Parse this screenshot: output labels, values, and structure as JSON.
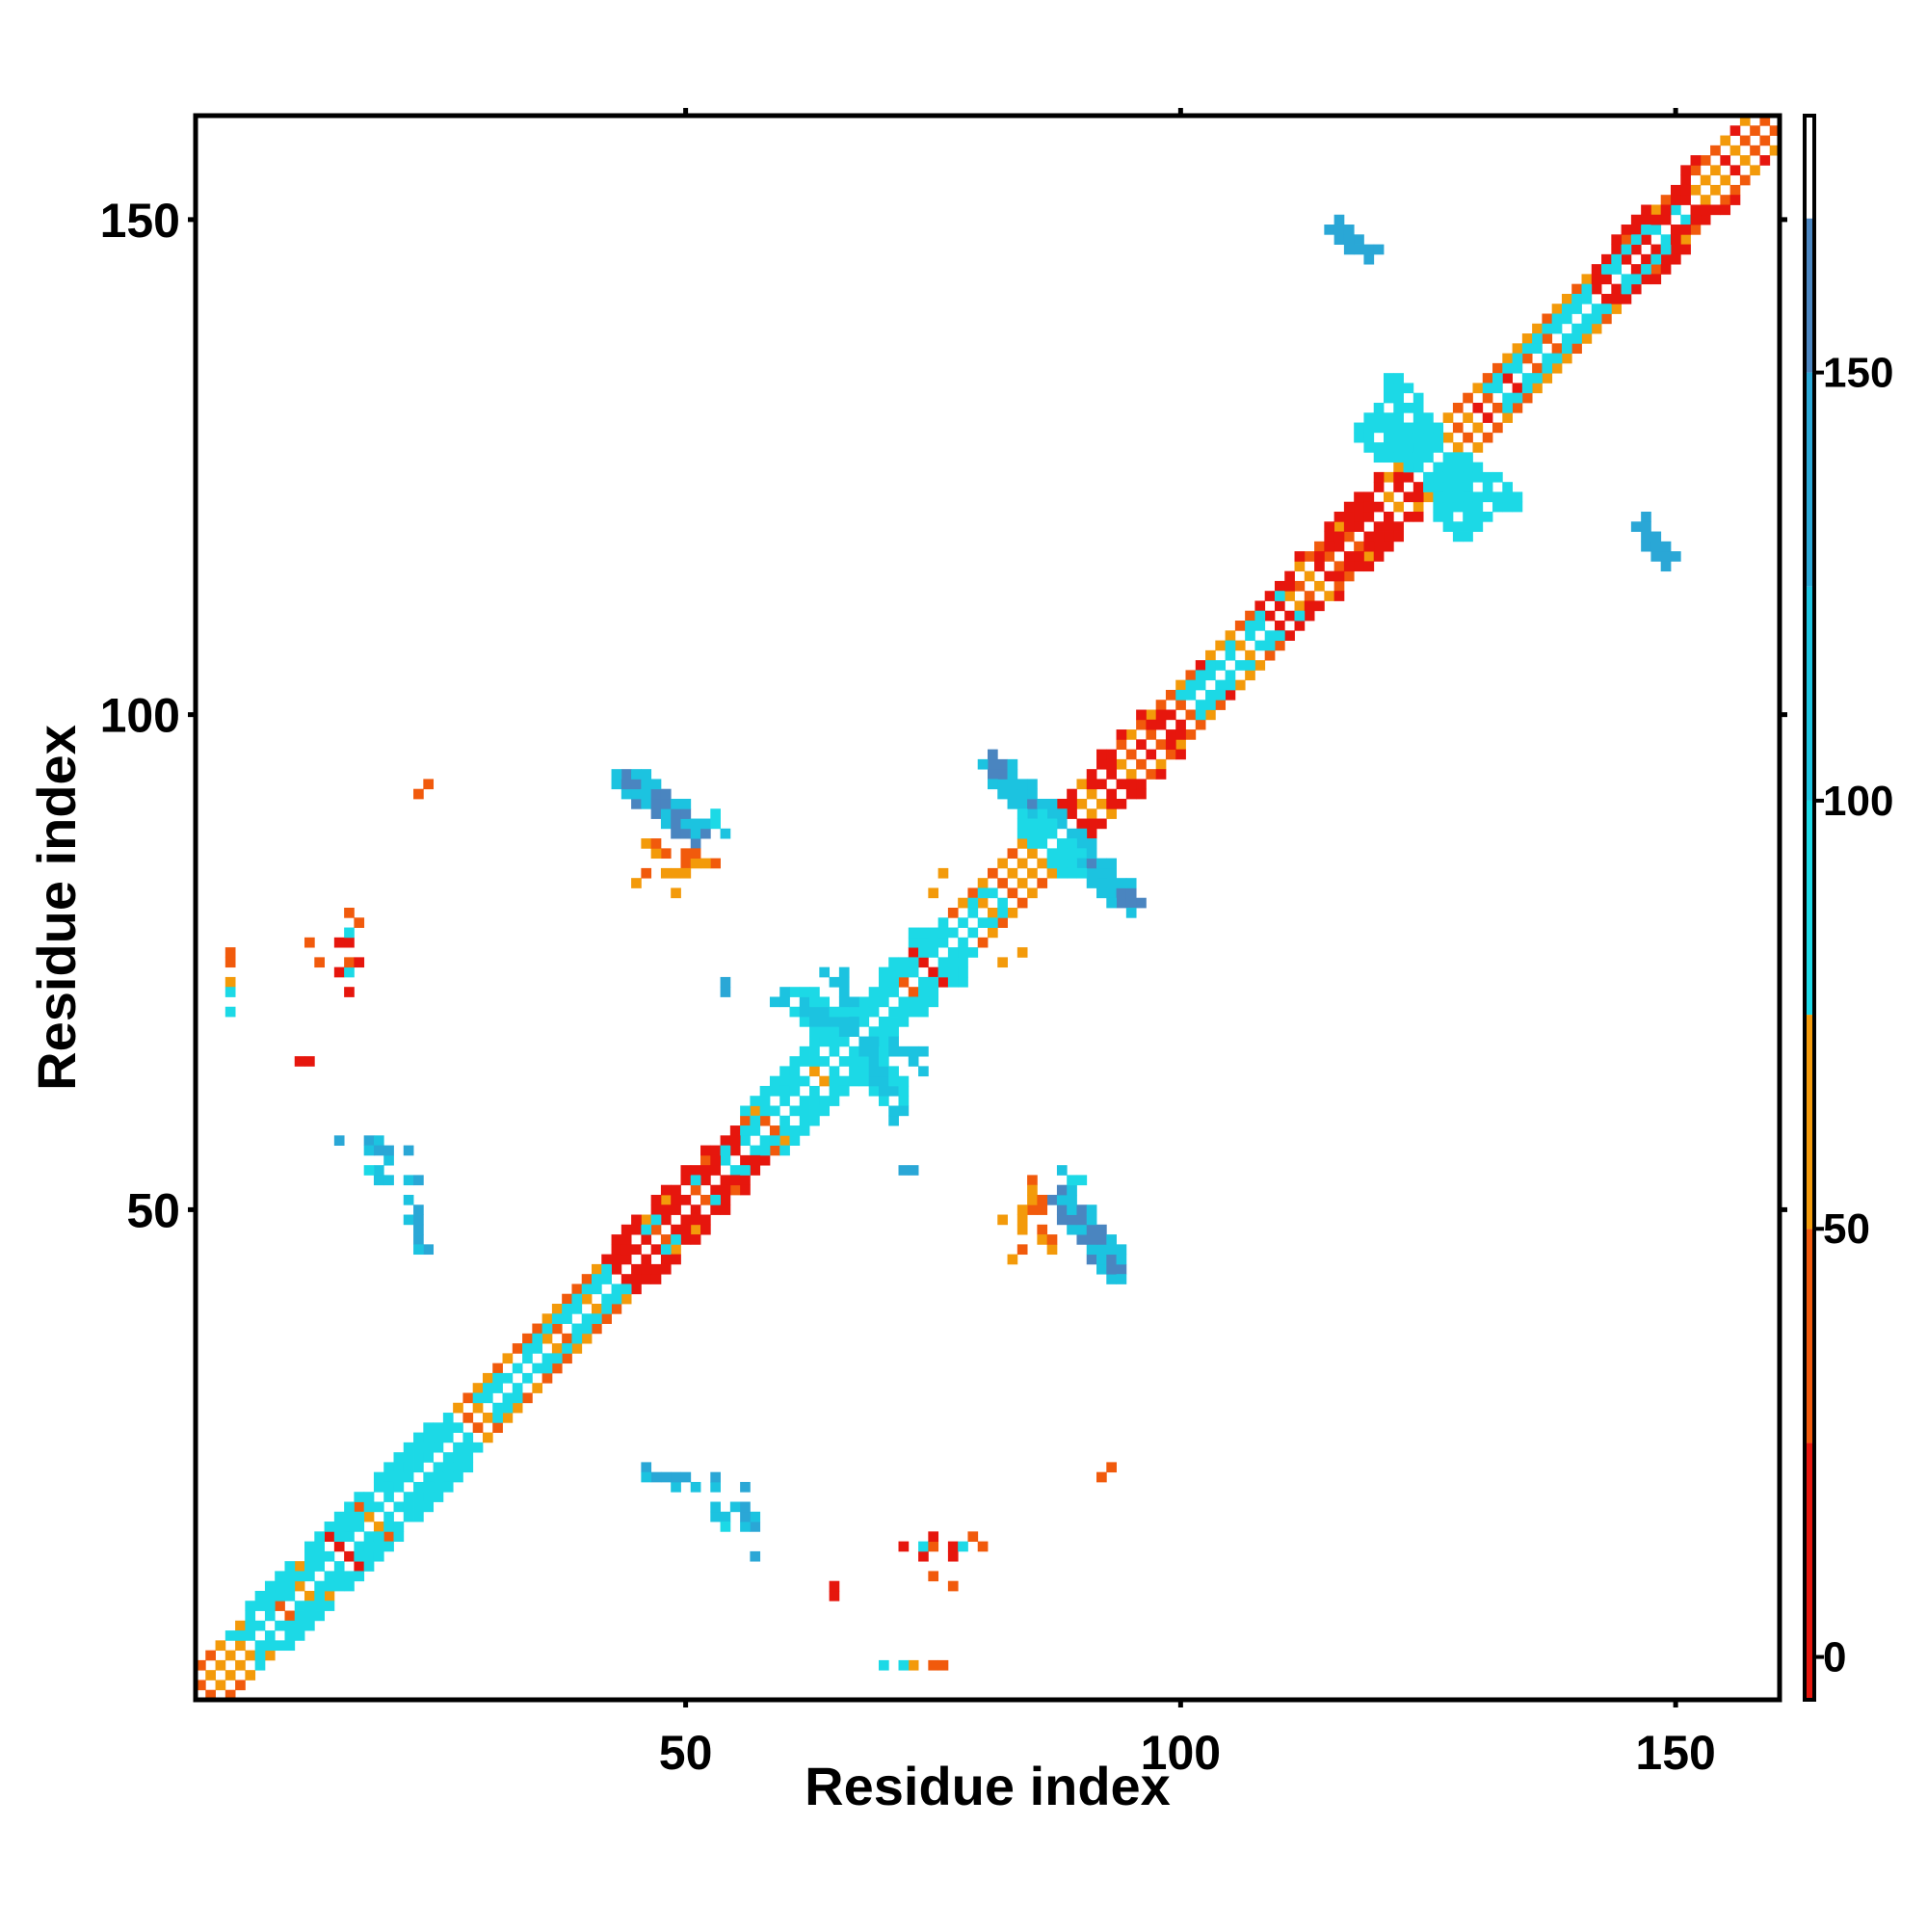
{
  "chart_data": {
    "type": "heatmap",
    "title": "",
    "xlabel": "Residue index",
    "ylabel": "Residue index",
    "xlim": [
      1,
      160
    ],
    "ylim": [
      1,
      160
    ],
    "x_ticks": [
      50,
      100,
      150
    ],
    "y_ticks": [
      50,
      100,
      150
    ],
    "colorbar": {
      "ticks": [
        0,
        50,
        100,
        150
      ],
      "range": [
        -5,
        180
      ],
      "bands": [
        {
          "from": -5,
          "to": 25,
          "color": "#e6160d"
        },
        {
          "from": 25,
          "to": 50,
          "color": "#f15a0c"
        },
        {
          "from": 50,
          "to": 75,
          "color": "#f39a0a"
        },
        {
          "from": 75,
          "to": 100,
          "color": "#1cd9e6"
        },
        {
          "from": 100,
          "to": 125,
          "color": "#1cc3e0"
        },
        {
          "from": 125,
          "to": 150,
          "color": "#2aa7d6"
        },
        {
          "from": 150,
          "to": 168,
          "color": "#4a85c0"
        },
        {
          "from": 168,
          "to": 180,
          "color": "#ffffff"
        }
      ]
    },
    "grid": false,
    "legend": "right colorbar",
    "symmetric": true,
    "regions": [
      {
        "name": "diagonal-band",
        "kind": "band",
        "start": [
          1,
          1
        ],
        "end": [
          160,
          160
        ],
        "half_width": 3,
        "pattern": "checker",
        "colors": [
          "#f39a0a",
          "#f15a0c",
          "#e6160d"
        ]
      },
      {
        "name": "diag-helix-1",
        "kind": "segment",
        "start": [
          7,
          7
        ],
        "end": [
          26,
          26
        ],
        "half_width": 3,
        "color": "#1cd9e6",
        "density": 0.55
      },
      {
        "name": "diag-helix-2",
        "kind": "segment",
        "start": [
          31,
          31
        ],
        "end": [
          42,
          42
        ],
        "half_width": 2,
        "color": "#1cd9e6",
        "density": 0.5
      },
      {
        "name": "diag-helix-3",
        "kind": "segment",
        "start": [
          48,
          48
        ],
        "end": [
          58,
          58
        ],
        "half_width": 2,
        "color": "#1cd9e6",
        "density": 0.5
      },
      {
        "name": "diag-helix-4",
        "kind": "segment",
        "start": [
          58,
          58
        ],
        "end": [
          76,
          76
        ],
        "half_width": 3,
        "color": "#1cd9e6",
        "density": 0.55
      },
      {
        "name": "diag-helix-5",
        "kind": "segment",
        "start": [
          102,
          102
        ],
        "end": [
          110,
          110
        ],
        "half_width": 2,
        "color": "#1cd9e6",
        "density": 0.45
      },
      {
        "name": "diag-helix-6",
        "kind": "segment",
        "start": [
          133,
          133
        ],
        "end": [
          140,
          140
        ],
        "half_width": 2,
        "color": "#1cd9e6",
        "density": 0.55
      },
      {
        "name": "diag-helix-7",
        "kind": "segment",
        "start": [
          142,
          142
        ],
        "end": [
          150,
          150
        ],
        "half_width": 2,
        "color": "#1cd9e6",
        "density": 0.5
      },
      {
        "name": "diag-red-1",
        "kind": "segment",
        "start": [
          45,
          45
        ],
        "end": [
          55,
          55
        ],
        "half_width": 3,
        "color": "#e6160d",
        "density": 0.3
      },
      {
        "name": "diag-red-2",
        "kind": "segment",
        "start": [
          88,
          88
        ],
        "end": [
          98,
          98
        ],
        "half_width": 3,
        "color": "#e6160d",
        "density": 0.3
      },
      {
        "name": "diag-red-3",
        "kind": "segment",
        "start": [
          111,
          111
        ],
        "end": [
          122,
          122
        ],
        "half_width": 3,
        "color": "#e6160d",
        "density": 0.3
      },
      {
        "name": "diag-red-4",
        "kind": "segment",
        "start": [
          144,
          144
        ],
        "end": [
          154,
          154
        ],
        "half_width": 3,
        "color": "#e6160d",
        "density": 0.3
      },
      {
        "name": "cross-1-arm",
        "kind": "segment",
        "start": [
          81,
          95
        ],
        "end": [
          95,
          81
        ],
        "half_width": 1.3,
        "color": "#4a85c0",
        "density": 0.9
      },
      {
        "name": "cross-1-edge",
        "kind": "segment",
        "start": [
          81,
          95
        ],
        "end": [
          95,
          81
        ],
        "half_width": 1.9,
        "color": "#1cc3e0",
        "density": 0.5
      },
      {
        "name": "cross-1-center",
        "kind": "segment",
        "start": [
          86,
          88
        ],
        "end": [
          89,
          85
        ],
        "half_width": 1.5,
        "color": "#1cd9e6",
        "density": 0.9
      },
      {
        "name": "cross-2-arm",
        "kind": "segment",
        "start": [
          119,
          128
        ],
        "end": [
          133,
          122
        ],
        "half_width": 1.5,
        "color": "#1cd9e6",
        "density": 0.8
      },
      {
        "name": "cross-2-arm-b",
        "kind": "segment",
        "start": [
          124,
          131
        ],
        "end": [
          130,
          120
        ],
        "half_width": 1.2,
        "color": "#1cd9e6",
        "density": 0.7
      },
      {
        "name": "cross-3-arm",
        "kind": "segment",
        "start": [
          61,
          70
        ],
        "end": [
          72,
          62
        ],
        "half_width": 1.3,
        "color": "#1cd9e6",
        "density": 0.7
      },
      {
        "name": "cross-3-arm-b",
        "kind": "segment",
        "start": [
          65,
          74
        ],
        "end": [
          71,
          60
        ],
        "half_width": 1.0,
        "color": "#1cc3e0",
        "density": 0.6
      },
      {
        "name": "cross-4-arm",
        "kind": "segment",
        "start": [
          73,
          77
        ],
        "end": [
          82,
          80
        ],
        "half_width": 1.2,
        "color": "#1cd9e6",
        "density": 0.6
      },
      {
        "name": "offdiag-upper-1",
        "kind": "segment",
        "start": [
          44,
          93
        ],
        "end": [
          51,
          88
        ],
        "half_width": 1.2,
        "color": "#4a85c0",
        "density": 0.9
      },
      {
        "name": "offdiag-upper-1-edge",
        "kind": "segment",
        "start": [
          44,
          93
        ],
        "end": [
          53,
          88
        ],
        "half_width": 1.7,
        "color": "#1cc3e0",
        "density": 0.45
      },
      {
        "name": "offdiag-upper-2",
        "kind": "segment",
        "start": [
          116,
          149
        ],
        "end": [
          119,
          147
        ],
        "half_width": 1.1,
        "color": "#2aa7d6",
        "density": 0.9
      },
      {
        "name": "offdiag-upper-3",
        "kind": "segment",
        "start": [
          147,
          118
        ],
        "end": [
          149,
          116
        ],
        "half_width": 1.1,
        "color": "#2aa7d6",
        "density": 0.9
      },
      {
        "name": "offdiag-lower-1",
        "kind": "segment",
        "start": [
          88,
          51
        ],
        "end": [
          93,
          45
        ],
        "half_width": 1.2,
        "color": "#4a85c0",
        "density": 0.9
      },
      {
        "name": "offdiag-lower-1-edge",
        "kind": "segment",
        "start": [
          88,
          52
        ],
        "end": [
          94,
          44
        ],
        "half_width": 1.7,
        "color": "#1cc3e0",
        "density": 0.45
      }
    ],
    "points": [
      [
        24,
        93,
        "#f15a0c"
      ],
      [
        16,
        80,
        "#f15a0c"
      ],
      [
        12,
        77,
        "#f15a0c"
      ],
      [
        15,
        77,
        "#e6160d"
      ],
      [
        16,
        77,
        "#e6160d"
      ],
      [
        16,
        78,
        "#1cd9e6"
      ],
      [
        4,
        76,
        "#f15a0c"
      ],
      [
        4,
        73,
        "#f39a0a"
      ],
      [
        4,
        72,
        "#1cd9e6"
      ],
      [
        15,
        74,
        "#e6160d"
      ],
      [
        11,
        65,
        "#e6160d"
      ],
      [
        15,
        57,
        "#2aa7d6"
      ],
      [
        18,
        57,
        "#2aa7d6"
      ],
      [
        19,
        57,
        "#1cc3e0"
      ],
      [
        18,
        56,
        "#1cc3e0"
      ],
      [
        19,
        56,
        "#4a85c0"
      ],
      [
        22,
        56,
        "#2aa7d6"
      ],
      [
        19,
        54,
        "#1cc3e0"
      ],
      [
        18,
        54,
        "#1cd9e6"
      ],
      [
        22,
        53,
        "#1cc3e0"
      ],
      [
        23,
        53,
        "#1cc3e0"
      ],
      [
        22,
        49,
        "#1cc3e0"
      ],
      [
        23,
        49,
        "#2aa7d6"
      ],
      [
        23,
        47,
        "#4a85c0"
      ],
      [
        23,
        48,
        "#2aa7d6"
      ],
      [
        24,
        46,
        "#2aa7d6"
      ],
      [
        23,
        46,
        "#2aa7d6"
      ],
      [
        46,
        87,
        "#f39a0a"
      ],
      [
        48,
        86,
        "#f15a0c"
      ],
      [
        50,
        86,
        "#f15a0c"
      ],
      [
        53,
        85,
        "#f15a0c"
      ],
      [
        52,
        85,
        "#f39a0a"
      ],
      [
        50,
        85,
        "#f15a0c"
      ],
      [
        48,
        84,
        "#f39a0a"
      ],
      [
        49,
        84,
        "#f39a0a"
      ],
      [
        46,
        84,
        "#f15a0c"
      ],
      [
        45,
        83,
        "#f39a0a"
      ],
      [
        75,
        82,
        "#f39a0a"
      ],
      [
        84,
        76,
        "#f39a0a"
      ],
      [
        54,
        73,
        "#2aa7d6"
      ],
      [
        72,
        54,
        "#2aa7d6"
      ],
      [
        82,
        49,
        "#f39a0a"
      ],
      [
        84,
        50,
        "#f39a0a"
      ],
      [
        84,
        48,
        "#f39a0a"
      ],
      [
        85,
        51,
        "#f39a0a"
      ],
      [
        86,
        51,
        "#f15a0c"
      ],
      [
        86,
        47,
        "#f39a0a"
      ],
      [
        87,
        47,
        "#f15a0c"
      ],
      [
        89,
        53,
        "#1cd9e6"
      ],
      [
        90,
        53,
        "#1cd9e6"
      ],
      [
        92,
        44,
        "#1cc3e0"
      ],
      [
        46,
        23,
        "#1cc3e0"
      ],
      [
        47,
        23,
        "#2aa7d6"
      ],
      [
        48,
        23,
        "#2aa7d6"
      ],
      [
        49,
        23,
        "#2aa7d6"
      ],
      [
        50,
        23,
        "#2aa7d6"
      ],
      [
        51,
        22,
        "#1cc3e0"
      ],
      [
        53,
        23,
        "#2aa7d6"
      ],
      [
        53,
        22,
        "#1cc3e0"
      ],
      [
        56,
        22,
        "#2aa7d6"
      ],
      [
        53,
        19,
        "#1cc3e0"
      ],
      [
        53,
        20,
        "#1cc3e0"
      ],
      [
        55,
        20,
        "#1cc3e0"
      ],
      [
        56,
        19,
        "#2aa7d6"
      ],
      [
        56,
        20,
        "#2aa7d6"
      ],
      [
        56,
        18,
        "#1cc3e0"
      ],
      [
        57,
        15,
        "#2aa7d6"
      ],
      [
        92,
        23,
        "#f15a0c"
      ],
      [
        72,
        16,
        "#e6160d"
      ],
      [
        74,
        16,
        "#1cd9e6"
      ],
      [
        75,
        16,
        "#f15a0c"
      ],
      [
        75,
        17,
        "#e6160d"
      ],
      [
        79,
        17,
        "#f15a0c"
      ],
      [
        75,
        13,
        "#f15a0c"
      ],
      [
        65,
        12,
        "#e6160d"
      ],
      [
        70,
        4,
        "#1cd9e6"
      ],
      [
        75,
        4,
        "#f15a0c"
      ]
    ]
  }
}
